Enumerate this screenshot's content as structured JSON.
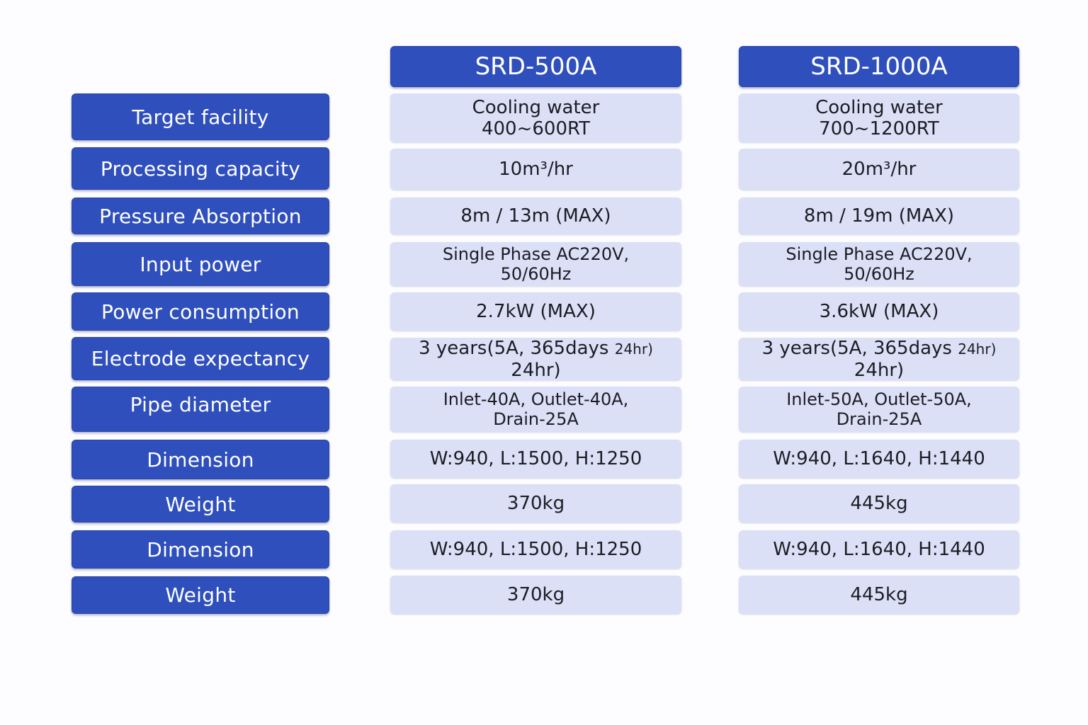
{
  "models": [
    "SRD-500A",
    "SRD-1000A"
  ],
  "rows": [
    {
      "label": "Target facility",
      "v1": "Cooling water\n400~600RT",
      "v2": "Cooling water\n700~1200RT"
    },
    {
      "label": "Processing capacity",
      "v1": "10m³/hr",
      "v2": "20m³/hr"
    },
    {
      "label": "Pressure Absorption",
      "v1": "8m / 13m (MAX)",
      "v2": "8m / 19m (MAX)"
    },
    {
      "label": "Input power",
      "v1": "Single Phase AC220V,\n50/60Hz",
      "v2": "Single Phase AC220V,\n50/60Hz"
    },
    {
      "label": "Power consumption",
      "v1": "2.7kW (MAX)",
      "v2": "3.6kW (MAX)"
    },
    {
      "label": "Electrode expectancy",
      "v1_main": "3 years(5A, 365days",
      "v1_small": "24hr)",
      "v1_line2": "24hr)",
      "v2_main": "3 years(5A, 365days",
      "v2_small": "24hr)",
      "v2_line2": "24hr)"
    },
    {
      "label": "Pipe diameter",
      "v1": "Inlet-40A, Outlet-40A,\nDrain-25A",
      "v2": "Inlet-50A, Outlet-50A,\nDrain-25A"
    },
    {
      "label": "Dimension",
      "v1": "W:940, L:1500, H:1250",
      "v2": "W:940, L:1640, H:1440"
    },
    {
      "label": "Weight",
      "v1": "370kg",
      "v2": "445kg"
    },
    {
      "label": "Dimension",
      "v1": "W:940, L:1500, H:1250",
      "v2": "W:940, L:1640, H:1440"
    },
    {
      "label": "Weight",
      "v1": "370kg",
      "v2": "445kg"
    }
  ]
}
